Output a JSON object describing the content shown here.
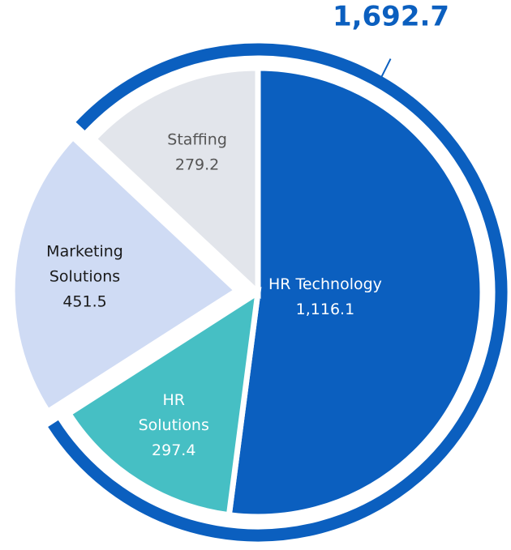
{
  "chart_data": {
    "type": "pie",
    "categories": [
      "HR Technology",
      "HR\nSolutions",
      "Marketing\nSolutions",
      "Staffing"
    ],
    "values": [
      1116.1,
      297.4,
      451.5,
      279.2
    ],
    "value_labels": [
      "1,116.1",
      "297.4",
      "451.5",
      "279.2"
    ],
    "colors": [
      "#0b5fbf",
      "#46bfc4",
      "#cfdbf4",
      "#e2e5eb"
    ],
    "annotations": [
      "1,692.7"
    ]
  }
}
